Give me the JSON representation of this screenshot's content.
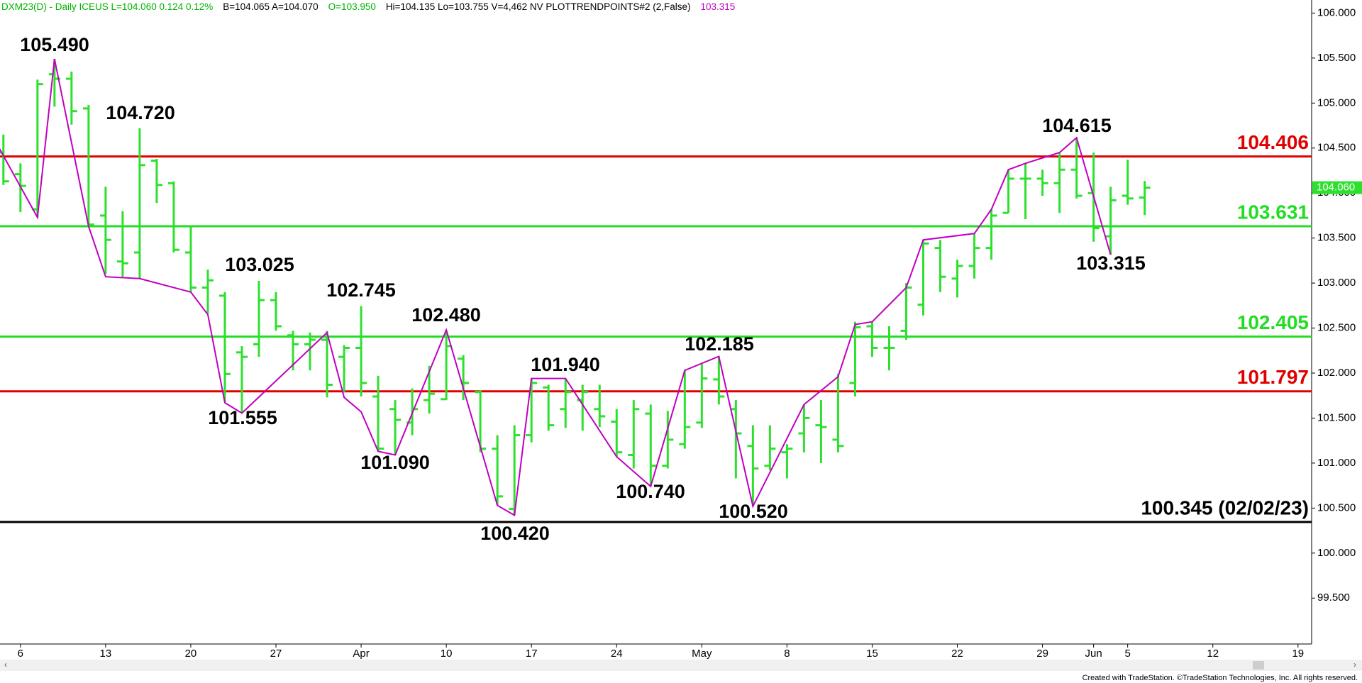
{
  "chart_data": {
    "type": "ohlc",
    "header": [
      {
        "text": "DXM23(D) - Daily  ICEUS  L=104.060  0.124  0.12%",
        "color": "#00b400"
      },
      {
        "text": "B=104.065  A=104.070",
        "color": "#000000"
      },
      {
        "text": "O=103.950",
        "color": "#00b400"
      },
      {
        "text": "Hi=104.135  Lo=103.755  V=4,462  NV  PLOTTRENDPOINTS#2 (2,False)",
        "color": "#000000"
      },
      {
        "text": "103.315",
        "color": "#c000c0"
      }
    ],
    "footer": "Created with TradeStation. ©TradeStation Technologies, Inc. All rights reserved.",
    "color": "#2ee02e",
    "x": [
      -1,
      0,
      1,
      2,
      3,
      4,
      5,
      6,
      7,
      8,
      9,
      10,
      11,
      12,
      13,
      14,
      15,
      16,
      17,
      18,
      19,
      20,
      21,
      22,
      23,
      24,
      25,
      26,
      27,
      28,
      29,
      30,
      31,
      32,
      33,
      34,
      35,
      36,
      37,
      38,
      39,
      40,
      41,
      42,
      43,
      44,
      45,
      46,
      47,
      48,
      49,
      50,
      51,
      52,
      53,
      54,
      55,
      56,
      57,
      58,
      59,
      60,
      61,
      62,
      63,
      64,
      65,
      66
    ],
    "open": [
      104.45,
      104.21,
      103.82,
      105.32,
      105.27,
      104.94,
      103.75,
      103.24,
      103.34,
      104.36,
      104.11,
      103.34,
      102.95,
      102.86,
      102.23,
      102.32,
      102.81,
      102.42,
      102.32,
      102.37,
      102.18,
      102.28,
      101.74,
      101.6,
      101.45,
      101.7,
      101.71,
      102.16,
      101.79,
      101.16,
      100.49,
      101.31,
      101.84,
      101.6,
      101.7,
      101.6,
      101.46,
      101.09,
      101.55,
      100.97,
      101.21,
      101.45,
      101.93,
      101.6,
      101.19,
      100.97,
      101.12,
      101.33,
      101.42,
      101.26,
      101.89,
      102.52,
      102.28,
      102.47,
      102.76,
      103.39,
      103.05,
      103.19,
      103.39,
      103.78,
      104.16,
      104.16,
      104.11,
      104.26,
      104.0,
      103.52,
      103.97,
      103.95
    ],
    "high": [
      104.65,
      104.33,
      105.26,
      105.49,
      105.35,
      104.98,
      104.07,
      103.8,
      104.72,
      104.38,
      104.13,
      103.63,
      103.15,
      102.9,
      102.3,
      103.025,
      102.9,
      102.47,
      102.45,
      102.47,
      102.31,
      102.745,
      101.97,
      101.7,
      101.83,
      102.08,
      102.48,
      102.2,
      101.81,
      101.31,
      101.42,
      101.94,
      101.87,
      101.94,
      101.87,
      101.87,
      101.6,
      101.7,
      101.65,
      101.58,
      102.03,
      102.1,
      102.185,
      101.7,
      101.42,
      101.42,
      101.21,
      101.65,
      101.7,
      101.99,
      102.57,
      102.57,
      102.52,
      103.0,
      103.48,
      103.48,
      103.26,
      103.55,
      103.82,
      104.26,
      104.33,
      104.26,
      104.45,
      104.615,
      104.45,
      104.07,
      104.37,
      104.135
    ],
    "low": [
      104.09,
      103.79,
      103.73,
      104.96,
      104.76,
      103.63,
      103.1,
      103.07,
      103.05,
      103.89,
      103.34,
      102.9,
      102.66,
      101.68,
      101.555,
      102.18,
      102.47,
      102.03,
      102.03,
      101.73,
      101.79,
      101.74,
      101.13,
      101.09,
      101.31,
      101.55,
      101.7,
      101.7,
      101.12,
      100.53,
      100.42,
      101.23,
      101.36,
      101.39,
      101.36,
      101.4,
      101.07,
      100.94,
      100.74,
      100.94,
      101.16,
      101.39,
      101.65,
      100.83,
      100.52,
      100.92,
      100.83,
      101.12,
      101.0,
      101.12,
      101.74,
      102.18,
      102.03,
      102.37,
      102.64,
      102.9,
      102.84,
      103.05,
      103.26,
      103.78,
      103.71,
      103.97,
      103.78,
      103.94,
      103.46,
      103.315,
      103.87,
      103.755
    ],
    "close": [
      104.13,
      104.08,
      105.21,
      105.27,
      104.91,
      103.65,
      103.48,
      103.22,
      104.31,
      104.09,
      103.37,
      102.95,
      103.03,
      101.99,
      102.18,
      102.81,
      102.52,
      102.32,
      102.37,
      101.87,
      102.28,
      101.89,
      101.16,
      101.48,
      101.6,
      101.77,
      102.3,
      101.89,
      101.16,
      100.63,
      101.31,
      101.89,
      101.42,
      101.79,
      101.79,
      101.52,
      101.12,
      101.6,
      100.97,
      101.26,
      101.4,
      101.94,
      101.74,
      101.33,
      100.94,
      101.16,
      101.16,
      101.5,
      101.4,
      101.19,
      102.51,
      102.28,
      102.28,
      102.95,
      103.44,
      103.07,
      103.19,
      103.39,
      103.75,
      104.16,
      104.16,
      104.11,
      104.26,
      103.97,
      103.61,
      103.92,
      103.94,
      104.06
    ],
    "trend": {
      "color": "#c000c0",
      "x": [
        -1.25,
        1,
        2,
        4,
        5,
        7,
        10,
        11,
        12,
        13,
        18,
        19,
        20,
        21,
        22,
        25,
        28,
        29,
        30,
        32,
        35,
        37,
        39,
        41,
        43,
        46,
        48,
        49,
        50,
        52,
        53,
        56,
        57,
        58,
        59,
        61,
        62,
        64
      ],
      "values": [
        104.5,
        103.73,
        105.49,
        103.63,
        103.07,
        103.05,
        102.9,
        102.65,
        101.67,
        101.555,
        102.45,
        101.73,
        101.57,
        101.13,
        101.09,
        102.48,
        100.53,
        100.42,
        101.94,
        101.94,
        101.07,
        100.74,
        102.03,
        102.185,
        100.52,
        101.65,
        101.96,
        102.54,
        102.57,
        102.95,
        103.48,
        103.55,
        103.82,
        104.26,
        104.33,
        104.45,
        104.615,
        103.315
      ]
    },
    "annotations": [
      "105.490",
      "104.720",
      "103.025",
      "101.555",
      "102.745",
      "101.090",
      "102.480",
      "100.420",
      "101.940",
      "100.740",
      "102.185",
      "100.520",
      "104.615",
      "103.315"
    ],
    "levels": [
      {
        "value": 104.406,
        "label": "104.406",
        "color": "#e00000"
      },
      {
        "value": 103.631,
        "label": "103.631",
        "color": "#22dd22"
      },
      {
        "value": 102.405,
        "label": "102.405",
        "color": "#22dd22"
      },
      {
        "value": 101.797,
        "label": "101.797",
        "color": "#e00000"
      },
      {
        "value": 100.345,
        "label": "100.345 (02/02/23)",
        "color": "#000000"
      }
    ],
    "last_price": {
      "value": 104.06,
      "label": "104.060",
      "color": "#2ee02e"
    },
    "xlim": [
      -1.2,
      75.8
    ],
    "xticks": [
      {
        "value": 0,
        "label": "6"
      },
      {
        "value": 5,
        "label": "13"
      },
      {
        "value": 10,
        "label": "20"
      },
      {
        "value": 15,
        "label": "27"
      },
      {
        "value": 20,
        "label": "Apr"
      },
      {
        "value": 25,
        "label": "10"
      },
      {
        "value": 30,
        "label": "17"
      },
      {
        "value": 35,
        "label": "24"
      },
      {
        "value": 40,
        "label": "May"
      },
      {
        "value": 45,
        "label": "8"
      },
      {
        "value": 50,
        "label": "15"
      },
      {
        "value": 55,
        "label": "22"
      },
      {
        "value": 60,
        "label": "29"
      },
      {
        "value": 63,
        "label": "Jun"
      },
      {
        "value": 65,
        "label": "5"
      },
      {
        "value": 70,
        "label": "12"
      },
      {
        "value": 75,
        "label": "19"
      }
    ],
    "ylim": [
      98.99,
      106.145
    ],
    "yticks": [
      {
        "value": 99.5,
        "label": "99.500"
      },
      {
        "value": 100,
        "label": "100.000"
      },
      {
        "value": 100.5,
        "label": "100.500"
      },
      {
        "value": 101,
        "label": "101.000"
      },
      {
        "value": 101.5,
        "label": "101.500"
      },
      {
        "value": 102,
        "label": "102.000"
      },
      {
        "value": 102.5,
        "label": "102.500"
      },
      {
        "value": 103,
        "label": "103.000"
      },
      {
        "value": 103.5,
        "label": "103.500"
      },
      {
        "value": 104,
        "label": "104.000"
      },
      {
        "value": 104.5,
        "label": "104.500"
      },
      {
        "value": 105,
        "label": "105.000"
      },
      {
        "value": 105.5,
        "label": "105.500"
      },
      {
        "value": 106,
        "label": "106.000"
      }
    ]
  }
}
